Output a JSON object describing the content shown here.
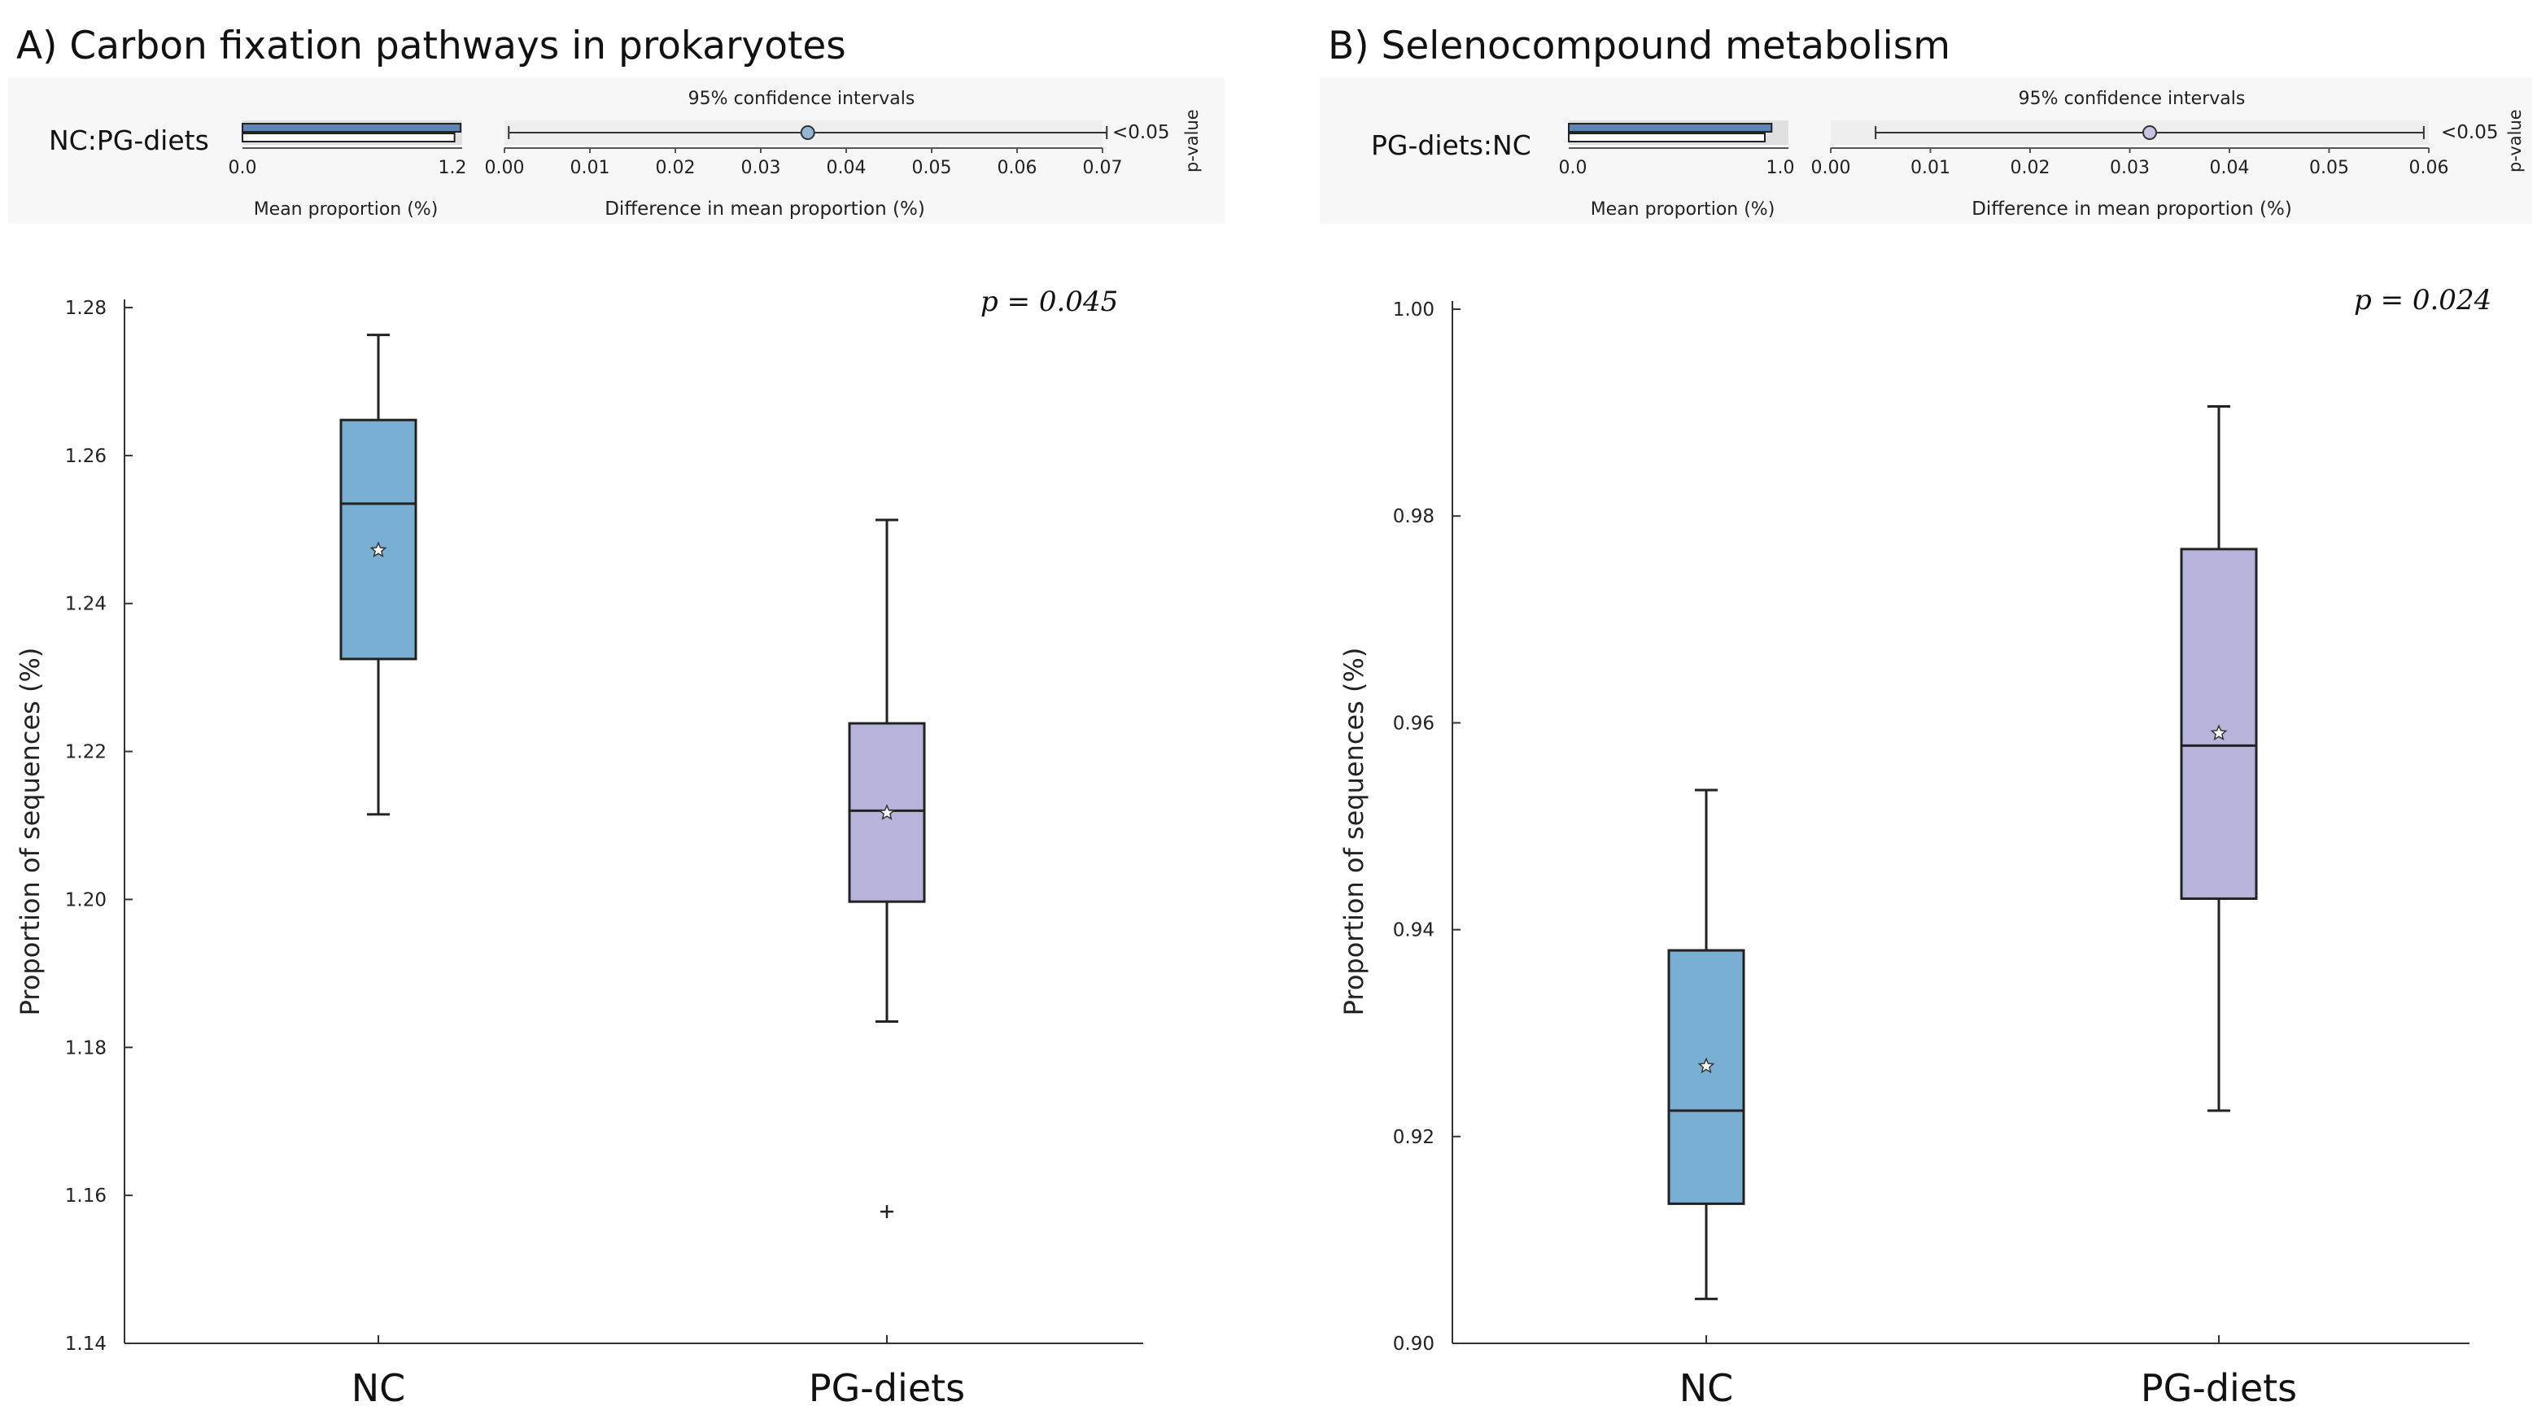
{
  "panels": [
    {
      "title": "A) Carbon fixation pathways in prokaryotes",
      "comparison": "NC:PG-diets",
      "mean_axis": {
        "label": "Mean proportion (%)",
        "ticks": [
          "0.0",
          "1.2"
        ],
        "max": 1.2,
        "bars": [
          1.247,
          1.212
        ]
      },
      "ci_axis": {
        "header": "95% confidence intervals",
        "label": "Difference in mean proportion (%)",
        "ticks": [
          "0.00",
          "0.01",
          "0.02",
          "0.03",
          "0.04",
          "0.05",
          "0.06",
          "0.07"
        ],
        "min": 0,
        "max": 0.07,
        "estimate": 0.0355,
        "lower": 0.0005,
        "upper": 0.0705
      },
      "pvalue_text": "<0.05",
      "pvalue_label": "p-value",
      "p_label": "p = 0.045"
    },
    {
      "title": "B) Selenocompound metabolism",
      "comparison": "PG-diets:NC",
      "mean_axis": {
        "label": "Mean proportion (%)",
        "ticks": [
          "0.0",
          "1.0"
        ],
        "max": 1.0,
        "bars": [
          0.959,
          0.927
        ]
      },
      "ci_axis": {
        "header": "95% confidence intervals",
        "label": "Difference in mean proportion (%)",
        "ticks": [
          "0.00",
          "0.01",
          "0.02",
          "0.03",
          "0.04",
          "0.05",
          "0.06"
        ],
        "min": 0,
        "max": 0.06,
        "estimate": 0.032,
        "lower": 0.0045,
        "upper": 0.0595
      },
      "pvalue_text": "<0.05",
      "pvalue_label": "p-value",
      "p_label": "p = 0.024"
    }
  ],
  "chart_data": [
    {
      "type": "box",
      "title": "A) Carbon fixation pathways in prokaryotes",
      "ylabel": "Proportion of sequences (%)",
      "xlabel": "",
      "ylim": [
        1.14,
        1.28
      ],
      "yticks": [
        "1.14",
        "1.16",
        "1.18",
        "1.20",
        "1.22",
        "1.24",
        "1.26",
        "1.28"
      ],
      "categories": [
        "NC",
        "PG-diets"
      ],
      "boxes": [
        {
          "name": "NC",
          "whisker_low": 1.2115,
          "q1": 1.2325,
          "median": 1.2535,
          "q3": 1.2648,
          "whisker_high": 1.2763,
          "mean": 1.2472,
          "outliers": [],
          "color": "#7aafd4"
        },
        {
          "name": "PG-diets",
          "whisker_low": 1.1835,
          "q1": 1.1997,
          "median": 1.212,
          "q3": 1.2238,
          "whisker_high": 1.2513,
          "mean": 1.2117,
          "outliers": [
            1.1578
          ],
          "color": "#b7b4dc"
        }
      ],
      "annotation": "p = 0.045"
    },
    {
      "type": "box",
      "title": "B) Selenocompound metabolism",
      "ylabel": "Proportion of sequences (%)",
      "xlabel": "",
      "ylim": [
        0.9,
        1.0
      ],
      "yticks": [
        "0.90",
        "0.92",
        "0.94",
        "0.96",
        "0.98",
        "1.00"
      ],
      "categories": [
        "NC",
        "PG-diets"
      ],
      "boxes": [
        {
          "name": "NC",
          "whisker_low": 0.9043,
          "q1": 0.9135,
          "median": 0.9225,
          "q3": 0.938,
          "whisker_high": 0.9535,
          "mean": 0.9268,
          "outliers": [],
          "color": "#7aafd4"
        },
        {
          "name": "PG-diets",
          "whisker_low": 0.9225,
          "q1": 0.943,
          "median": 0.9578,
          "q3": 0.9768,
          "whisker_high": 0.9906,
          "mean": 0.959,
          "outliers": [],
          "color": "#b7b4dc"
        }
      ],
      "annotation": "p = 0.024"
    }
  ],
  "colors": {
    "nc": "#7aafd4",
    "pg": "#b7b4dc",
    "bar": "#5b86b5",
    "ci_dot": "#8fb8d8",
    "ci_dot_b": "#c7c3e6"
  }
}
